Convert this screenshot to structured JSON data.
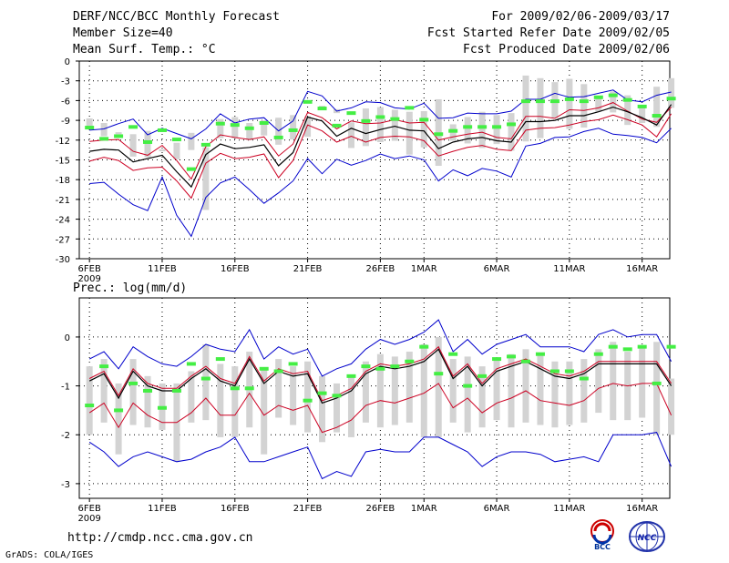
{
  "header": {
    "title": "DERF/NCC/BCC Monthly Forecast",
    "member_size": "Member Size=40",
    "variable": "Mean Surf. Temp.: °C",
    "period": "For 2009/02/06-2009/03/17",
    "started": "Fcst Started Refer Date 2009/02/05",
    "produced": "Fcst Produced Date 2009/02/06"
  },
  "footer": {
    "url": "http://cmdp.ncc.cma.gov.cn",
    "credit": "GrADS: COLA/IGES",
    "logo_bcc": "BCC",
    "logo_ncc": "NCC"
  },
  "colors": {
    "mean": "#000000",
    "red": "#cc0022",
    "blue": "#0000cc",
    "green": "#44ee44",
    "bar": "#d3d3d3",
    "grid": "#000000"
  },
  "chart_data": [
    {
      "type": "line",
      "title": "Mean Surf. Temp.: °C",
      "ylim": [
        -30,
        0
      ],
      "yticks": [
        0,
        -3,
        -6,
        -9,
        -12,
        -15,
        -18,
        -21,
        -24,
        -27,
        -30
      ],
      "x_start_day": 1,
      "x_end_day": 40,
      "xticks": [
        {
          "day": 1,
          "label": "6FEB"
        },
        {
          "day": 6,
          "label": "11FEB"
        },
        {
          "day": 11,
          "label": "16FEB"
        },
        {
          "day": 16,
          "label": "21FEB"
        },
        {
          "day": 21,
          "label": "26FEB"
        },
        {
          "day": 24,
          "label": "1MAR"
        },
        {
          "day": 29,
          "label": "6MAR"
        },
        {
          "day": 34,
          "label": "11MAR"
        },
        {
          "day": 39,
          "label": "16MAR"
        }
      ],
      "year_label": "2009",
      "series": [
        {
          "name": "ensemble-max",
          "color": "#0000cc",
          "values": [
            -10.5,
            -10.3,
            -9.5,
            -8.8,
            -11.2,
            -10.2,
            -11,
            -11.8,
            -10.3,
            -8,
            -9.4,
            -8.8,
            -8.6,
            -10.6,
            -9.1,
            -4.6,
            -5.3,
            -7.6,
            -7.1,
            -6.2,
            -6.3,
            -7.1,
            -7.3,
            -6.4,
            -8.7,
            -8.6,
            -7.9,
            -8,
            -8,
            -7.6,
            -5.8,
            -5.8,
            -4.9,
            -5.5,
            -5.4,
            -4.9,
            -4.4,
            -5.9,
            -6.2,
            -5.2,
            -4.7
          ]
        },
        {
          "name": "upper",
          "color": "#cc0022",
          "values": [
            -12.2,
            -12,
            -11.9,
            -13.7,
            -14.3,
            -12.8,
            -15.1,
            -17.9,
            -13,
            -11.2,
            -11.6,
            -11.9,
            -11.5,
            -14.4,
            -12.6,
            -7.8,
            -8.6,
            -10.3,
            -9.1,
            -9.5,
            -9.4,
            -8.9,
            -9.4,
            -9.3,
            -12,
            -11.5,
            -11.1,
            -10.8,
            -11.6,
            -11.8,
            -8.4,
            -8.4,
            -8.7,
            -7.4,
            -7.5,
            -7.1,
            -6.3,
            -7.6,
            -8.8,
            -9.3,
            -7
          ]
        },
        {
          "name": "mean",
          "color": "#000000",
          "values": [
            -13.7,
            -13.4,
            -13.5,
            -15.3,
            -14.8,
            -14.3,
            -16.8,
            -19.1,
            -14.2,
            -12.6,
            -13.3,
            -13.1,
            -12.7,
            -15.9,
            -13.9,
            -8.5,
            -9.1,
            -11.4,
            -10.2,
            -11,
            -10.4,
            -9.9,
            -10.5,
            -10.6,
            -13.3,
            -12.3,
            -11.8,
            -11.6,
            -12.1,
            -12.3,
            -9.2,
            -9.2,
            -9,
            -8.3,
            -8.3,
            -7.7,
            -7,
            -7.7,
            -8.6,
            -9.7,
            -6.6
          ]
        },
        {
          "name": "lower",
          "color": "#cc0022",
          "values": [
            -15.2,
            -14.6,
            -15.1,
            -16.6,
            -16.2,
            -16.1,
            -18.2,
            -20.8,
            -15.5,
            -14,
            -14.8,
            -14.6,
            -14.1,
            -17.7,
            -15.1,
            -9.7,
            -10.6,
            -12.3,
            -11.4,
            -12.3,
            -11.6,
            -11.4,
            -11.5,
            -12.1,
            -14.4,
            -13.7,
            -13.1,
            -12.8,
            -13.4,
            -13.6,
            -10.5,
            -10.2,
            -10.1,
            -9.7,
            -9.2,
            -8.9,
            -8.2,
            -8.9,
            -9.7,
            -11.5,
            -8
          ]
        },
        {
          "name": "ensemble-min",
          "color": "#0000cc",
          "values": [
            -18.6,
            -18.4,
            -20.2,
            -21.8,
            -22.7,
            -17.6,
            -23.4,
            -26.6,
            -20.7,
            -18.5,
            -17.6,
            -19.5,
            -21.6,
            -20,
            -18.2,
            -14.8,
            -17.1,
            -14.9,
            -15.8,
            -15.1,
            -14.1,
            -14.8,
            -14.4,
            -15,
            -18.2,
            -16.5,
            -17.4,
            -16.3,
            -16.7,
            -17.6,
            -12.9,
            -12.5,
            -11.6,
            -11.5,
            -10.7,
            -10.2,
            -11.1,
            -11.3,
            -11.6,
            -12.4,
            -10.2
          ]
        }
      ],
      "bars": [
        [
          -8.7,
          -10.2
        ],
        [
          -9.4,
          -11.4
        ],
        [
          -10.8,
          -11.1
        ],
        [
          -11.1,
          -14.5
        ],
        [
          -10.6,
          -14.6
        ],
        [
          -13.4,
          -13.7
        ],
        [
          -12.4,
          -14.9
        ],
        [
          -10.9,
          -13.5
        ],
        [
          -13.1,
          -22.6
        ],
        [
          -8.8,
          -11.7
        ],
        [
          -8.5,
          -11.7
        ],
        [
          -9.4,
          -12
        ],
        [
          -9,
          -11.3
        ],
        [
          -8.6,
          -12.7
        ],
        [
          -8.2,
          -11.9
        ],
        [
          -8.4,
          -11.5
        ],
        [
          -6.8,
          -7.3
        ],
        [
          -7.3,
          -7.9
        ],
        [
          -9.3,
          -13.2
        ],
        [
          -7.2,
          -12.9
        ],
        [
          -7,
          -12.3
        ],
        [
          -7.4,
          -12.1
        ],
        [
          -7.7,
          -14.2
        ],
        [
          -7.6,
          -13.1
        ],
        [
          -5.8,
          -15.9
        ],
        [
          -9.6,
          -12.1
        ],
        [
          -8.5,
          -12.5
        ],
        [
          -7.7,
          -13.2
        ],
        [
          -8.2,
          -12.6
        ],
        [
          -7.9,
          -13.6
        ],
        [
          -2.2,
          -12.2
        ],
        [
          -2.6,
          -11.7
        ],
        [
          -3.2,
          -8.6
        ],
        [
          -2.7,
          -10.3
        ],
        [
          -3.5,
          -10.1
        ],
        [
          -5.3,
          -7.7
        ],
        [
          -4.6,
          -7.8
        ],
        [
          -5.2,
          -9.7
        ],
        [
          -6.8,
          -9.4
        ],
        [
          -3.9,
          -10
        ],
        [
          -2.6,
          -7.1
        ]
      ],
      "markers": [
        -10.1,
        -11.8,
        -11.4,
        -10,
        -12.3,
        -10.5,
        -11.9,
        -16.4,
        -12.7,
        -9.5,
        -9.7,
        -10.2,
        -9.4,
        -11.6,
        -10.5,
        -6.2,
        -7.2,
        -9.8,
        -7.9,
        -9.1,
        -8.5,
        -8.8,
        -7.1,
        -8.9,
        -11.1,
        -10.6,
        -10,
        -10,
        -10,
        -9.6,
        -6.1,
        -6.1,
        -6.1,
        -5.8,
        -6.1,
        -5.5,
        -5.2,
        -5.9,
        -6.9,
        -8.3,
        -5.7
      ]
    },
    {
      "type": "line",
      "title": "Prec.: log(mm/d)",
      "ylim": [
        -3.3,
        0.8
      ],
      "yticks": [
        0,
        -1,
        -2,
        -3
      ],
      "x_start_day": 1,
      "x_end_day": 40,
      "xticks": [
        {
          "day": 1,
          "label": "6FEB"
        },
        {
          "day": 6,
          "label": "11FEB"
        },
        {
          "day": 11,
          "label": "16FEB"
        },
        {
          "day": 16,
          "label": "21FEB"
        },
        {
          "day": 21,
          "label": "26FEB"
        },
        {
          "day": 24,
          "label": "1MAR"
        },
        {
          "day": 29,
          "label": "6MAR"
        },
        {
          "day": 34,
          "label": "11MAR"
        },
        {
          "day": 39,
          "label": "16MAR"
        }
      ],
      "year_label": "2009",
      "series": [
        {
          "name": "ensemble-max",
          "color": "#0000cc",
          "values": [
            -0.45,
            -0.3,
            -0.65,
            -0.2,
            -0.4,
            -0.55,
            -0.6,
            -0.4,
            -0.15,
            -0.25,
            -0.3,
            0.15,
            -0.45,
            -0.2,
            -0.35,
            -0.25,
            -0.8,
            -0.65,
            -0.55,
            -0.25,
            -0.05,
            -0.15,
            -0.05,
            0.1,
            0.35,
            -0.3,
            -0.05,
            -0.35,
            -0.15,
            -0.05,
            0.05,
            -0.2,
            -0.2,
            -0.2,
            -0.3,
            0.05,
            0.15,
            0,
            0.05,
            0.05,
            -0.5
          ]
        },
        {
          "name": "upper",
          "color": "#cc0022",
          "values": [
            -0.85,
            -0.7,
            -1.2,
            -0.65,
            -0.95,
            -1.05,
            -1.05,
            -0.8,
            -0.6,
            -0.85,
            -0.95,
            -0.4,
            -0.9,
            -0.65,
            -0.75,
            -0.7,
            -1.3,
            -1.2,
            -1.05,
            -0.7,
            -0.55,
            -0.6,
            -0.55,
            -0.45,
            -0.2,
            -0.8,
            -0.55,
            -0.95,
            -0.65,
            -0.55,
            -0.45,
            -0.6,
            -0.75,
            -0.8,
            -0.7,
            -0.5,
            -0.5,
            -0.5,
            -0.5,
            -0.5,
            -0.95
          ]
        },
        {
          "name": "mean",
          "color": "#000000",
          "values": [
            -0.9,
            -0.75,
            -1.25,
            -0.7,
            -1,
            -1.1,
            -1.1,
            -0.85,
            -0.65,
            -0.9,
            -1,
            -0.45,
            -0.95,
            -0.7,
            -0.8,
            -0.75,
            -1.35,
            -1.25,
            -1.1,
            -0.75,
            -0.6,
            -0.65,
            -0.6,
            -0.5,
            -0.25,
            -0.85,
            -0.6,
            -1,
            -0.7,
            -0.6,
            -0.5,
            -0.65,
            -0.8,
            -0.85,
            -0.75,
            -0.55,
            -0.55,
            -0.55,
            -0.55,
            -0.55,
            -1
          ]
        },
        {
          "name": "lower",
          "color": "#cc0022",
          "values": [
            -1.55,
            -1.35,
            -1.85,
            -1.35,
            -1.6,
            -1.75,
            -1.75,
            -1.55,
            -1.25,
            -1.6,
            -1.6,
            -1.15,
            -1.6,
            -1.4,
            -1.5,
            -1.4,
            -1.95,
            -1.85,
            -1.7,
            -1.4,
            -1.3,
            -1.35,
            -1.25,
            -1.15,
            -0.95,
            -1.45,
            -1.25,
            -1.55,
            -1.35,
            -1.25,
            -1.1,
            -1.3,
            -1.35,
            -1.4,
            -1.3,
            -1.05,
            -0.95,
            -1,
            -0.95,
            -0.95,
            -1.6
          ]
        },
        {
          "name": "ensemble-min",
          "color": "#0000cc",
          "values": [
            -2.15,
            -2.35,
            -2.65,
            -2.45,
            -2.35,
            -2.45,
            -2.55,
            -2.5,
            -2.35,
            -2.25,
            -2.05,
            -2.55,
            -2.55,
            -2.45,
            -2.35,
            -2.25,
            -2.9,
            -2.75,
            -2.85,
            -2.35,
            -2.3,
            -2.35,
            -2.35,
            -2.05,
            -2.05,
            -2.2,
            -2.35,
            -2.65,
            -2.45,
            -2.35,
            -2.35,
            -2.4,
            -2.55,
            -2.5,
            -2.45,
            -2.55,
            -2,
            -2,
            -2,
            -1.95,
            -2.65
          ]
        }
      ],
      "bars": [
        [
          -0.6,
          -2
        ],
        [
          -0.45,
          -1.75
        ],
        [
          -0.95,
          -2.4
        ],
        [
          -0.45,
          -1.8
        ],
        [
          -0.8,
          -1.85
        ],
        [
          -0.95,
          -1.9
        ],
        [
          -0.95,
          -2.55
        ],
        [
          -0.7,
          -1.75
        ],
        [
          -0.15,
          -1.7
        ],
        [
          -0.55,
          -2.05
        ],
        [
          -0.6,
          -2.05
        ],
        [
          -0.3,
          -1.85
        ],
        [
          -0.65,
          -2.4
        ],
        [
          -0.45,
          -1.65
        ],
        [
          -0.6,
          -1.8
        ],
        [
          -0.5,
          -1.95
        ],
        [
          -0.8,
          -2.15
        ],
        [
          -0.95,
          -1.95
        ],
        [
          -0.8,
          -2.05
        ],
        [
          -0.5,
          -1.75
        ],
        [
          -0.35,
          -1.85
        ],
        [
          -0.4,
          -1.8
        ],
        [
          -0.3,
          -1.75
        ],
        [
          -0.15,
          -2.05
        ],
        [
          0,
          -2.05
        ],
        [
          -0.45,
          -1.75
        ],
        [
          -0.4,
          -1.95
        ],
        [
          -0.6,
          -1.85
        ],
        [
          -0.45,
          -1.7
        ],
        [
          -0.35,
          -1.85
        ],
        [
          -0.25,
          -1.75
        ],
        [
          -0.35,
          -1.8
        ],
        [
          -0.5,
          -1.85
        ],
        [
          -0.5,
          -1.8
        ],
        [
          -0.45,
          -1.75
        ],
        [
          -0.25,
          -1.55
        ],
        [
          -0.1,
          -1.7
        ],
        [
          -0.3,
          -1.7
        ],
        [
          -0.2,
          -1.65
        ],
        [
          -0.1,
          -2
        ],
        [
          -0.85,
          -2
        ]
      ],
      "markers": [
        -1.4,
        -0.6,
        -1.5,
        -0.95,
        -1.1,
        -1.45,
        -1.1,
        -0.55,
        -0.85,
        -0.45,
        -1.05,
        -1.05,
        -0.65,
        -0.7,
        -0.55,
        -1.3,
        -1.15,
        -1.2,
        -0.8,
        -0.6,
        -0.65,
        -0.6,
        -0.5,
        -0.2,
        -0.75,
        -0.35,
        -1,
        -0.8,
        -0.45,
        -0.4,
        -0.5,
        -0.35,
        -0.7,
        -0.7,
        -0.85,
        -0.35,
        -0.2,
        -0.25,
        -0.2,
        -0.95,
        -0.2
      ]
    }
  ]
}
